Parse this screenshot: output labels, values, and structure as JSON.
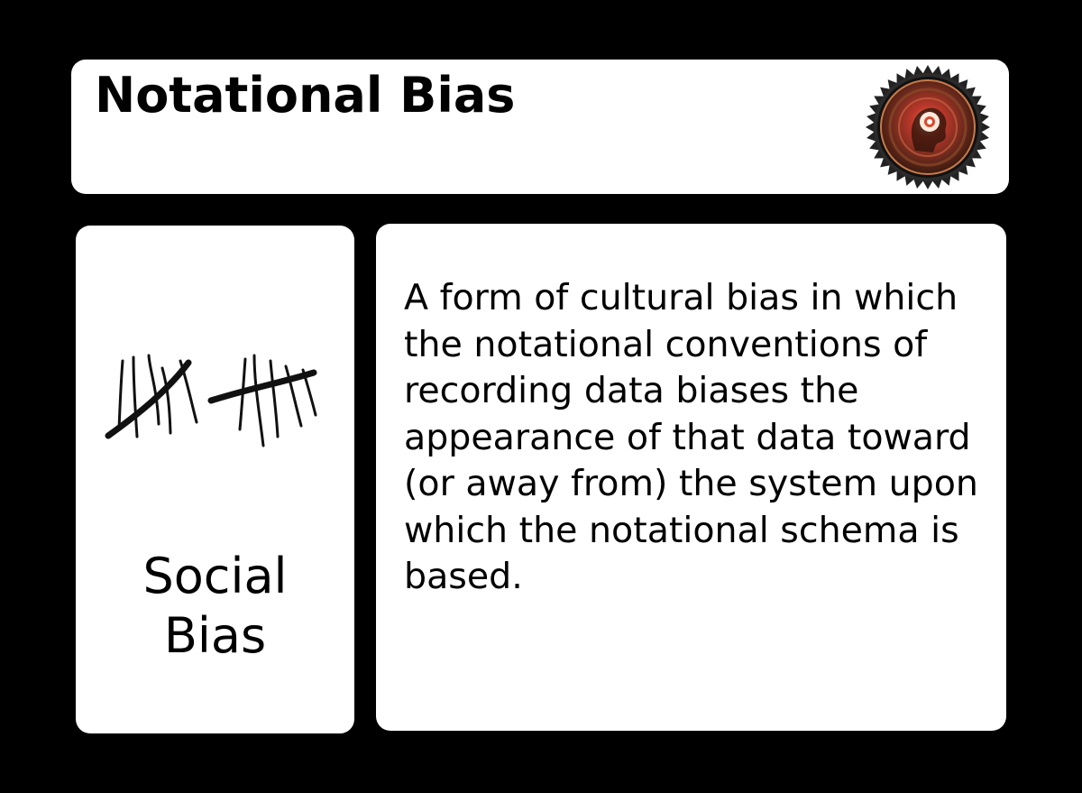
{
  "header": {
    "title": "Notational Bias",
    "badge_icon": "bias-seal-badge-icon"
  },
  "category": {
    "image_icon": "tally-marks-icon",
    "label_line1": "Social",
    "label_line2": "Bias"
  },
  "definition": {
    "text": "A form of cultural bias in which the notational conventions of recording data biases the appearance of that data toward (or away from) the system upon which the notational schema is based."
  },
  "colors": {
    "background": "#000000",
    "card": "#ffffff",
    "text": "#000000"
  }
}
